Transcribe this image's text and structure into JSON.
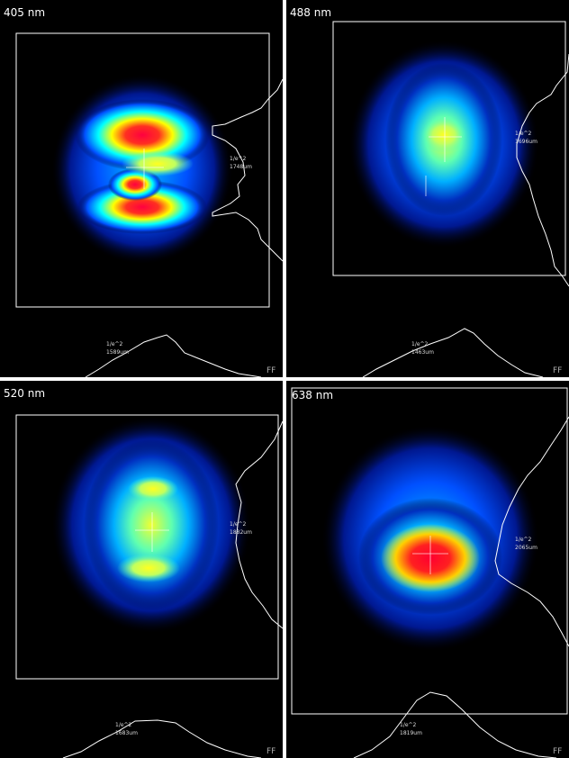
{
  "panels": [
    {
      "label": "405 nm",
      "right_profile": {
        "label": "1/e^2",
        "width": "1748um"
      },
      "bottom_profile": {
        "label": "1/e^2",
        "width": "1589um"
      },
      "corner": "FF"
    },
    {
      "label": "488 nm",
      "right_profile": {
        "label": "1/e^2",
        "width": "1696um"
      },
      "bottom_profile": {
        "label": "1/e^2",
        "width": "1463um"
      },
      "corner": "FF"
    },
    {
      "label": "520 nm",
      "right_profile": {
        "label": "1/e^2",
        "width": "1882um"
      },
      "bottom_profile": {
        "label": "1/e^2",
        "width": "1683um"
      },
      "corner": "FF"
    },
    {
      "label": "638 nm",
      "right_profile": {
        "label": "1/e^2",
        "width": "2065um"
      },
      "bottom_profile": {
        "label": "1/e^2",
        "width": "1819um"
      },
      "corner": "FF"
    }
  ]
}
